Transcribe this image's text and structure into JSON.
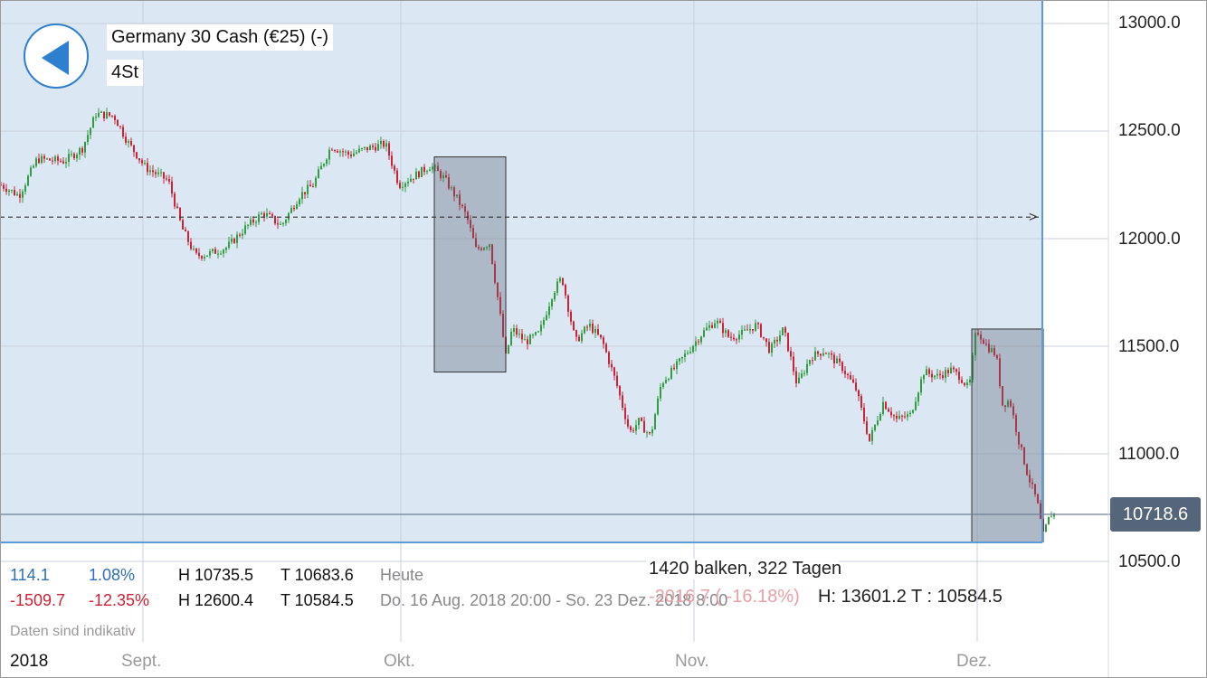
{
  "header": {
    "instrument": "Germany 30 Cash (€25) (-)",
    "timeframe": "4St"
  },
  "stats": {
    "row1": {
      "change": "114.1",
      "change_pct": "1.08%",
      "high": "H 10735.5",
      "low": "T 10683.6",
      "period": "Heute"
    },
    "row2": {
      "change": "-1509.7",
      "change_pct": "-12.35%",
      "high": "H 12600.4",
      "low": "T 10584.5",
      "period": "Do. 16 Aug. 2018 20:00 - So. 23 Dez. 2018 8:00"
    },
    "disclaimer": "Daten sind indikativ"
  },
  "selection_info": {
    "bars": "1420 balken, 322 Tagen",
    "faded_change": "-2016.7 ( -16.18%)",
    "high_low": "H: 13601.2 T : 10584.5"
  },
  "current_price": "10718.6",
  "colors": {
    "up": "#2e9e3e",
    "down": "#cc2233",
    "background_band": "#dce7f4",
    "accent": "#2f7fd0"
  },
  "chart_data": {
    "type": "candlestick",
    "title": "Germany 30 Cash (€25) (-)",
    "ylim": [
      10450,
      13100
    ],
    "y_ticks": [
      "13000.0",
      "12500.0",
      "12000.0",
      "11500.0",
      "11000.0",
      "10500.0"
    ],
    "x_ticks": [
      "2018",
      "Sept.",
      "Okt.",
      "Nov.",
      "Dez."
    ],
    "reference_line": 12100,
    "current_line": 10718.6,
    "path": [
      [
        0,
        12250
      ],
      [
        20,
        12200
      ],
      [
        40,
        12370
      ],
      [
        70,
        12360
      ],
      [
        90,
        12420
      ],
      [
        105,
        12580
      ],
      [
        125,
        12570
      ],
      [
        140,
        12450
      ],
      [
        160,
        12330
      ],
      [
        185,
        12270
      ],
      [
        200,
        12050
      ],
      [
        215,
        11920
      ],
      [
        230,
        11930
      ],
      [
        250,
        11960
      ],
      [
        270,
        12050
      ],
      [
        290,
        12120
      ],
      [
        310,
        12060
      ],
      [
        330,
        12200
      ],
      [
        345,
        12250
      ],
      [
        365,
        12430
      ],
      [
        385,
        12390
      ],
      [
        405,
        12420
      ],
      [
        425,
        12440
      ],
      [
        440,
        12250
      ],
      [
        460,
        12300
      ],
      [
        475,
        12340
      ],
      [
        490,
        12280
      ],
      [
        505,
        12180
      ],
      [
        515,
        12100
      ],
      [
        525,
        11950
      ],
      [
        540,
        11980
      ],
      [
        550,
        11700
      ],
      [
        558,
        11450
      ],
      [
        565,
        11580
      ],
      [
        580,
        11520
      ],
      [
        595,
        11560
      ],
      [
        610,
        11750
      ],
      [
        620,
        11820
      ],
      [
        635,
        11520
      ],
      [
        650,
        11600
      ],
      [
        665,
        11520
      ],
      [
        680,
        11330
      ],
      [
        695,
        11100
      ],
      [
        705,
        11150
      ],
      [
        718,
        11080
      ],
      [
        730,
        11330
      ],
      [
        745,
        11400
      ],
      [
        760,
        11480
      ],
      [
        775,
        11560
      ],
      [
        790,
        11620
      ],
      [
        805,
        11540
      ],
      [
        820,
        11560
      ],
      [
        835,
        11600
      ],
      [
        850,
        11480
      ],
      [
        865,
        11580
      ],
      [
        880,
        11320
      ],
      [
        895,
        11450
      ],
      [
        910,
        11480
      ],
      [
        930,
        11400
      ],
      [
        945,
        11300
      ],
      [
        960,
        11060
      ],
      [
        975,
        11240
      ],
      [
        990,
        11160
      ],
      [
        1005,
        11180
      ],
      [
        1020,
        11380
      ],
      [
        1035,
        11360
      ],
      [
        1050,
        11390
      ],
      [
        1060,
        11360
      ],
      [
        1070,
        11300
      ],
      [
        1078,
        11580
      ],
      [
        1090,
        11500
      ],
      [
        1100,
        11460
      ],
      [
        1107,
        11230
      ],
      [
        1115,
        11250
      ],
      [
        1125,
        11060
      ],
      [
        1135,
        10900
      ],
      [
        1145,
        10780
      ],
      [
        1152,
        10620
      ],
      [
        1160,
        10720
      ],
      [
        1166,
        10718.6
      ]
    ],
    "selection_boxes": [
      {
        "x_from": "box1_start",
        "y_range": [
          11380,
          12380
        ]
      },
      {
        "x_from": "box2_start",
        "y_range": [
          10590,
          11580
        ]
      }
    ]
  }
}
